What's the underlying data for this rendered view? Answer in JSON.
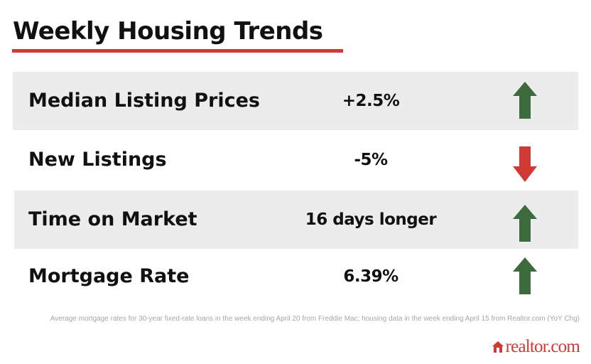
{
  "title": "Weekly Housing Trends",
  "colors": {
    "accent": "#d13a34",
    "up": "#3d6b3d",
    "down": "#d13a34",
    "row_shade": "#ececec"
  },
  "rows": [
    {
      "label": "Median Listing Prices",
      "value": "+2.5%",
      "direction": "up",
      "icon": "arrow-up-icon",
      "shaded": true
    },
    {
      "label": "New Listings",
      "value": "-5%",
      "direction": "down",
      "icon": "arrow-down-icon",
      "shaded": false
    },
    {
      "label": "Time on Market",
      "value": "16 days longer",
      "direction": "up",
      "icon": "arrow-up-icon",
      "shaded": true
    },
    {
      "label": "Mortgage Rate",
      "value": "6.39%",
      "direction": "up",
      "icon": "arrow-up-icon",
      "shaded": false
    }
  ],
  "footnote": "Average mortgage rates for 30-year fixed-rate loans in the week ending April 20 from Freddie Mac; housing data in the week ending April 15 from Realtor.com (YoY Chg)",
  "logo": {
    "text": "realtor.com",
    "icon": "house-icon"
  }
}
